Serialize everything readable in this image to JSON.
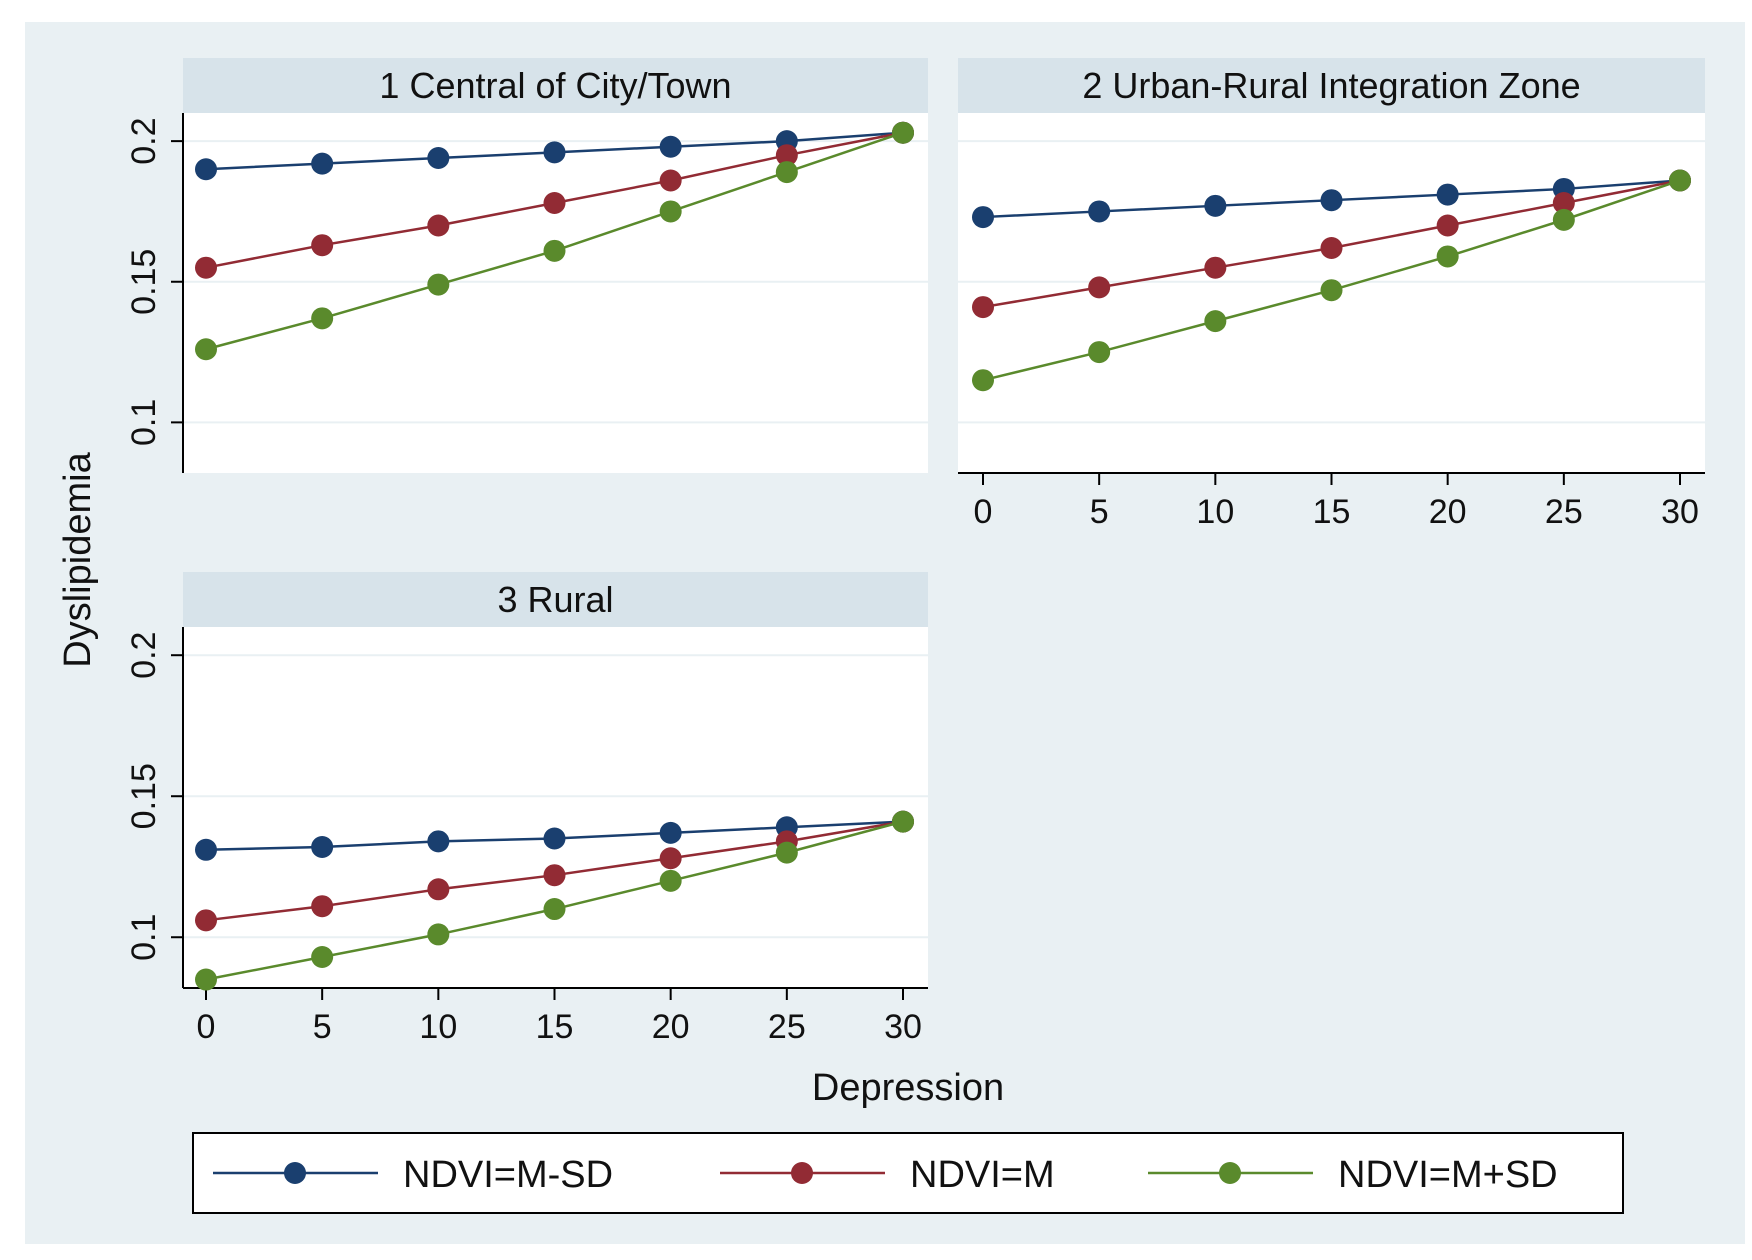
{
  "chart_data": {
    "type": "line",
    "xlabel": "Depression",
    "ylabel": "Dyslipidemia",
    "x": [
      0,
      5,
      10,
      15,
      20,
      25,
      30
    ],
    "xticks": [
      "0",
      "5",
      "10",
      "15",
      "20",
      "25",
      "30"
    ],
    "yticks": [
      "0.1",
      "0.15",
      "0.2"
    ],
    "ylim": [
      0.082,
      0.21
    ],
    "legend": [
      {
        "name": "NDVI=M-SD",
        "color": "#1a3f6f"
      },
      {
        "name": "NDVI=M",
        "color": "#922b34"
      },
      {
        "name": "NDVI=M+SD",
        "color": "#5a8a2c"
      }
    ],
    "panels": [
      {
        "title": "1 Central of City/Town",
        "series": [
          {
            "name": "NDVI=M-SD",
            "values": [
              0.19,
              0.192,
              0.194,
              0.196,
              0.198,
              0.2,
              0.203
            ]
          },
          {
            "name": "NDVI=M",
            "values": [
              0.155,
              0.163,
              0.17,
              0.178,
              0.186,
              0.195,
              0.203
            ]
          },
          {
            "name": "NDVI=M+SD",
            "values": [
              0.126,
              0.137,
              0.149,
              0.161,
              0.175,
              0.189,
              0.203
            ]
          }
        ]
      },
      {
        "title": "2 Urban-Rural Integration Zone",
        "series": [
          {
            "name": "NDVI=M-SD",
            "values": [
              0.173,
              0.175,
              0.177,
              0.179,
              0.181,
              0.183,
              0.186
            ]
          },
          {
            "name": "NDVI=M",
            "values": [
              0.141,
              0.148,
              0.155,
              0.162,
              0.17,
              0.178,
              0.186
            ]
          },
          {
            "name": "NDVI=M+SD",
            "values": [
              0.115,
              0.125,
              0.136,
              0.147,
              0.159,
              0.172,
              0.186
            ]
          }
        ]
      },
      {
        "title": "3 Rural",
        "series": [
          {
            "name": "NDVI=M-SD",
            "values": [
              0.131,
              0.132,
              0.134,
              0.135,
              0.137,
              0.139,
              0.141
            ]
          },
          {
            "name": "NDVI=M",
            "values": [
              0.106,
              0.111,
              0.117,
              0.122,
              0.128,
              0.134,
              0.141
            ]
          },
          {
            "name": "NDVI=M+SD",
            "values": [
              0.085,
              0.093,
              0.101,
              0.11,
              0.12,
              0.13,
              0.141
            ]
          }
        ]
      }
    ]
  }
}
